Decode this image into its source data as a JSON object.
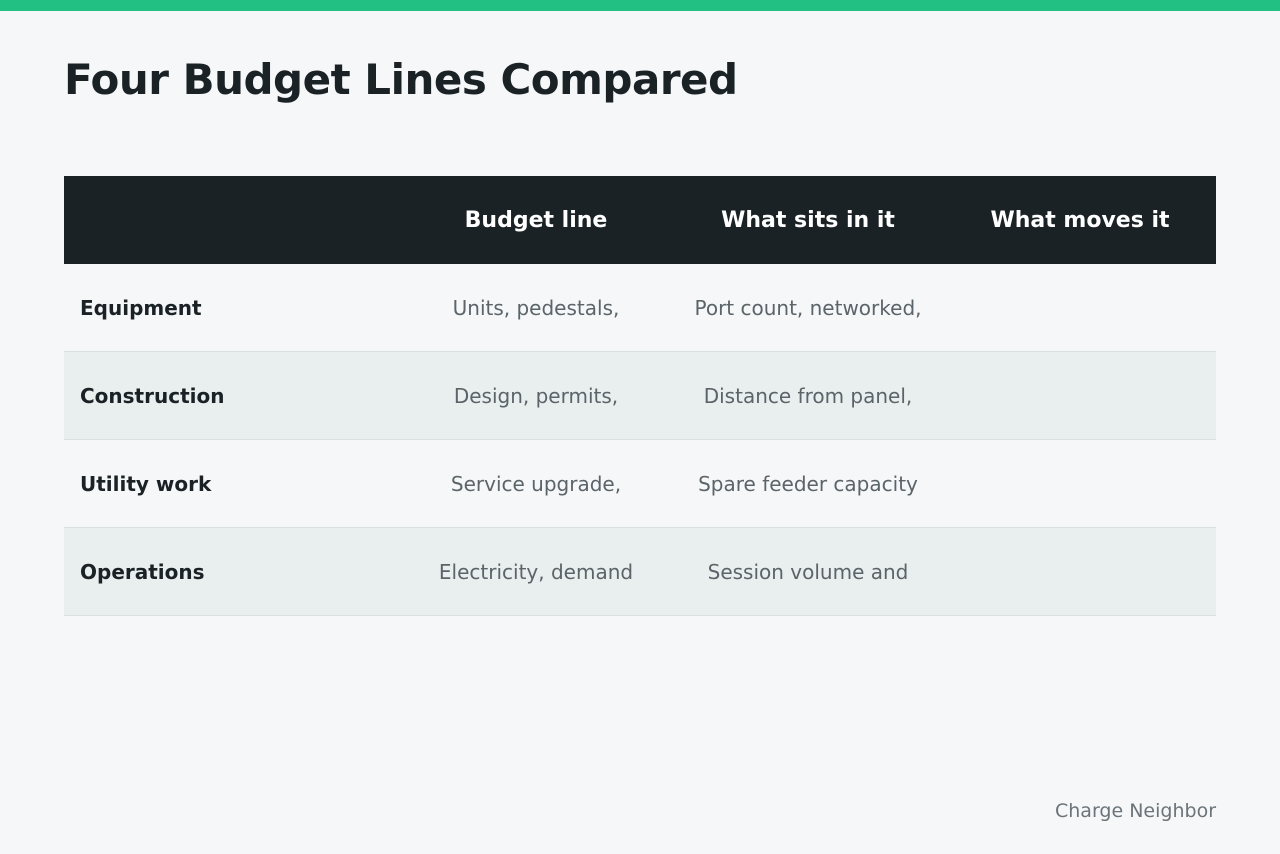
{
  "title": "Four Budget Lines Compared",
  "colors": {
    "accent": "#22c083",
    "header_bg": "#1b2226",
    "page_bg": "#f5f7f9",
    "alt_row_bg": "#e9eeee"
  },
  "table": {
    "headers": [
      "",
      "Budget line",
      "What sits in it",
      "What moves it"
    ],
    "rows": [
      {
        "label": "Equipment",
        "budget_line": "Units, pedestals,",
        "what_sits": "Port count, networked,",
        "what_moves": ""
      },
      {
        "label": "Construction",
        "budget_line": "Design, permits,",
        "what_sits": "Distance from panel,",
        "what_moves": ""
      },
      {
        "label": "Utility work",
        "budget_line": "Service upgrade,",
        "what_sits": "Spare feeder capacity",
        "what_moves": ""
      },
      {
        "label": "Operations",
        "budget_line": "Electricity, demand",
        "what_sits": "Session volume and",
        "what_moves": ""
      }
    ]
  },
  "footer": {
    "brand": "Charge Neighbor"
  }
}
